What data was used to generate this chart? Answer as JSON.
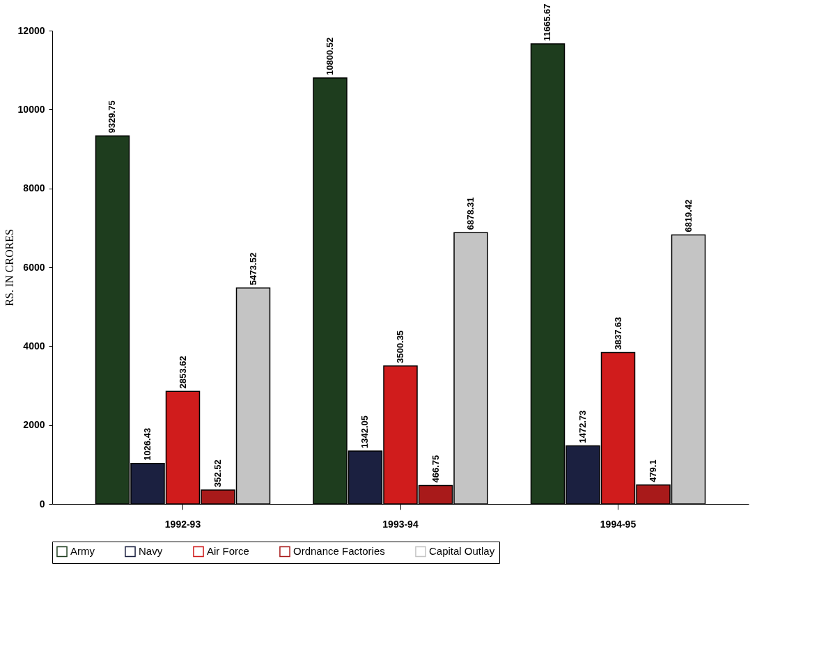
{
  "chart_data": {
    "type": "bar",
    "ylabel": "RS. IN CRORES",
    "categories": [
      "1992-93",
      "1993-94",
      "1994-95"
    ],
    "series": [
      {
        "name": "Army",
        "color": "#1e3d1e",
        "values": [
          9329.75,
          10800.52,
          11665.67
        ]
      },
      {
        "name": "Navy",
        "color": "#1b2040",
        "values": [
          1026.43,
          1342.05,
          1472.73
        ]
      },
      {
        "name": "Air Force",
        "color": "#d01c1c",
        "values": [
          2853.62,
          3500.35,
          3837.63
        ]
      },
      {
        "name": "Ordnance Factories",
        "color": "#a81a1a",
        "values": [
          352.52,
          466.75,
          479.1
        ]
      },
      {
        "name": "Capital Outlay",
        "color": "#c4c4c4",
        "values": [
          5473.52,
          6878.31,
          6819.42
        ]
      }
    ],
    "ylim": [
      0,
      12000
    ],
    "yticks": [
      0,
      2000,
      4000,
      6000,
      8000,
      10000,
      12000
    ],
    "grid": false,
    "legend": "bottom",
    "data_labels": true
  }
}
